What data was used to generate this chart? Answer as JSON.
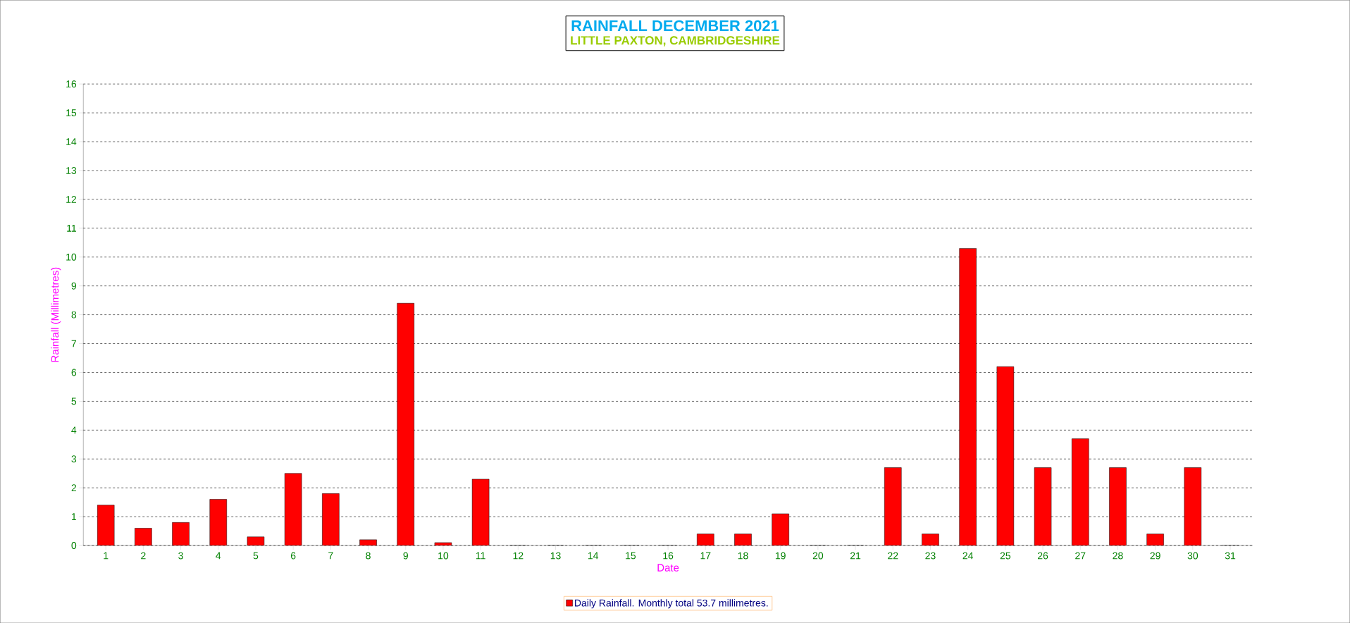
{
  "chart_data": {
    "type": "bar",
    "title": "RAINFALL   DECEMBER 2021",
    "subtitle": "LITTLE PAXTON, CAMBRIDGESHIRE",
    "xlabel": "Date",
    "ylabel": "Rainfall  (Millimetres)",
    "categories": [
      "1",
      "2",
      "3",
      "4",
      "5",
      "6",
      "7",
      "8",
      "9",
      "10",
      "11",
      "12",
      "13",
      "14",
      "15",
      "16",
      "17",
      "18",
      "19",
      "20",
      "21",
      "22",
      "23",
      "24",
      "25",
      "26",
      "27",
      "28",
      "29",
      "30",
      "31"
    ],
    "series": [
      {
        "name": "Daily Rainfall. Monthly total 53.7 millimetres.",
        "color": "#ff0000",
        "values": [
          1.4,
          0.6,
          0.8,
          1.6,
          0.3,
          2.5,
          1.8,
          0.2,
          8.4,
          0.1,
          2.3,
          0,
          0,
          0,
          0,
          0,
          0.4,
          0.4,
          1.1,
          0,
          0,
          2.7,
          0.4,
          10.3,
          6.2,
          2.7,
          3.7,
          2.7,
          0.4,
          2.7,
          0
        ]
      }
    ],
    "ylim": [
      0,
      16
    ],
    "yticks": [
      0,
      1,
      2,
      3,
      4,
      5,
      6,
      7,
      8,
      9,
      10,
      11,
      12,
      13,
      14,
      15,
      16
    ],
    "grid": "y",
    "legend": "bottom"
  }
}
